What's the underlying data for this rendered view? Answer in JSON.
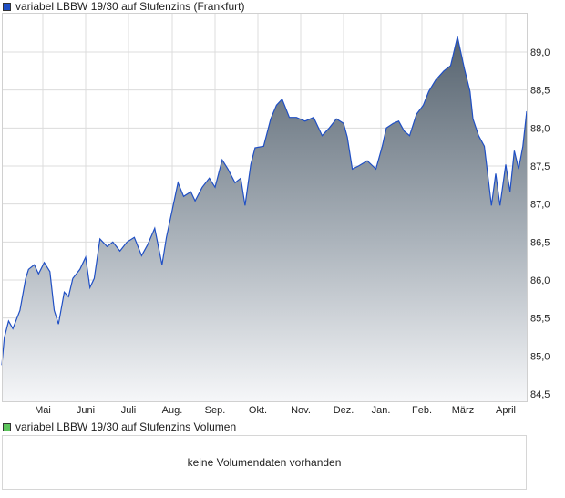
{
  "legend": {
    "price_label": "variabel LBBW 19/30 auf Stufenzins (Frankfurt)",
    "price_color": "#1f4fc4",
    "volume_label": "variabel LBBW 19/30 auf Stufenzins Volumen",
    "volume_color": "#5cc45c"
  },
  "volume": {
    "message": "keine Volumendaten vorhanden"
  },
  "chart_data": {
    "type": "area",
    "title": "",
    "xlabel": "",
    "ylabel": "",
    "ylim": [
      84.45,
      89.5
    ],
    "grid": true,
    "y_ticks": [
      "84,5",
      "85,0",
      "85,5",
      "86,0",
      "86,5",
      "87,0",
      "87,5",
      "88,0",
      "88,5",
      "89,0"
    ],
    "x_ticks": [
      "Mai",
      "Juni",
      "Juli",
      "Aug.",
      "Sep.",
      "Okt.",
      "Nov.",
      "Dez.",
      "Jan.",
      "Feb.",
      "März",
      "April"
    ],
    "series": [
      {
        "name": "variabel LBBW 19/30 auf Stufenzins (Frankfurt)",
        "points": [
          [
            "04-02",
            84.88
          ],
          [
            "04-04",
            85.24
          ],
          [
            "04-07",
            85.46
          ],
          [
            "04-10",
            85.36
          ],
          [
            "04-15",
            85.6
          ],
          [
            "04-19",
            86.02
          ],
          [
            "04-21",
            86.14
          ],
          [
            "04-25",
            86.2
          ],
          [
            "04-28",
            86.08
          ],
          [
            "05-02",
            86.23
          ],
          [
            "05-06",
            86.11
          ],
          [
            "05-09",
            85.6
          ],
          [
            "05-12",
            85.42
          ],
          [
            "05-16",
            85.84
          ],
          [
            "05-19",
            85.78
          ],
          [
            "05-22",
            86.02
          ],
          [
            "05-27",
            86.14
          ],
          [
            "06-01",
            86.3
          ],
          [
            "06-04",
            85.9
          ],
          [
            "06-07",
            86.02
          ],
          [
            "06-11",
            86.54
          ],
          [
            "06-16",
            86.44
          ],
          [
            "06-20",
            86.5
          ],
          [
            "06-25",
            86.38
          ],
          [
            "06-30",
            86.5
          ],
          [
            "07-05",
            86.56
          ],
          [
            "07-10",
            86.32
          ],
          [
            "07-14",
            86.46
          ],
          [
            "07-19",
            86.68
          ],
          [
            "07-24",
            86.2
          ],
          [
            "07-27",
            86.56
          ],
          [
            "07-31",
            86.92
          ],
          [
            "08-05",
            87.28
          ],
          [
            "08-09",
            87.1
          ],
          [
            "08-14",
            87.16
          ],
          [
            "08-17",
            87.04
          ],
          [
            "08-22",
            87.22
          ],
          [
            "08-27",
            87.34
          ],
          [
            "09-01",
            87.22
          ],
          [
            "09-06",
            87.58
          ],
          [
            "09-10",
            87.46
          ],
          [
            "09-15",
            87.28
          ],
          [
            "09-19",
            87.34
          ],
          [
            "09-22",
            86.98
          ],
          [
            "09-26",
            87.52
          ],
          [
            "09-29",
            87.74
          ],
          [
            "10-05",
            87.76
          ],
          [
            "10-10",
            88.12
          ],
          [
            "10-14",
            88.3
          ],
          [
            "10-18",
            88.38
          ],
          [
            "10-23",
            88.14
          ],
          [
            "10-28",
            88.14
          ],
          [
            "11-04",
            88.09
          ],
          [
            "11-10",
            88.14
          ],
          [
            "11-16",
            87.9
          ],
          [
            "11-21",
            88.0
          ],
          [
            "11-26",
            88.12
          ],
          [
            "12-01",
            88.06
          ],
          [
            "12-04",
            87.88
          ],
          [
            "12-08",
            87.46
          ],
          [
            "12-13",
            87.5
          ],
          [
            "12-20",
            87.57
          ],
          [
            "12-27",
            87.46
          ],
          [
            "01-02",
            87.76
          ],
          [
            "01-05",
            88.0
          ],
          [
            "01-10",
            88.06
          ],
          [
            "01-14",
            88.09
          ],
          [
            "01-18",
            87.96
          ],
          [
            "01-22",
            87.9
          ],
          [
            "01-27",
            88.18
          ],
          [
            "02-02",
            88.3
          ],
          [
            "02-06",
            88.48
          ],
          [
            "02-11",
            88.63
          ],
          [
            "02-17",
            88.75
          ],
          [
            "02-22",
            88.82
          ],
          [
            "02-27",
            89.2
          ],
          [
            "03-02",
            88.78
          ],
          [
            "03-06",
            88.48
          ],
          [
            "03-08",
            88.12
          ],
          [
            "03-12",
            87.9
          ],
          [
            "03-16",
            87.76
          ],
          [
            "03-21",
            86.98
          ],
          [
            "03-24",
            87.4
          ],
          [
            "03-27",
            86.98
          ],
          [
            "04-01",
            87.52
          ],
          [
            "04-04",
            87.16
          ],
          [
            "04-07",
            87.7
          ],
          [
            "04-10",
            87.46
          ],
          [
            "04-13",
            87.76
          ],
          [
            "04-15",
            88.22
          ]
        ]
      }
    ]
  }
}
